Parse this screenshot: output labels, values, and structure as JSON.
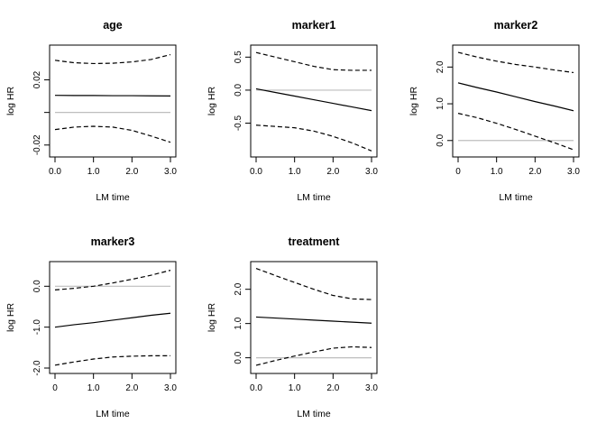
{
  "chart_data": [
    {
      "type": "line",
      "title": "age",
      "xlabel": "LM time",
      "ylabel": "log HR",
      "xlim": [
        0,
        3
      ],
      "ylim": [
        -0.024,
        0.038
      ],
      "xticks": [
        "0.0",
        "1.0",
        "2.0",
        "3.0"
      ],
      "xtick_values": [
        0,
        1,
        2,
        3
      ],
      "yticks": [
        "-0.02",
        "0.02"
      ],
      "ytick_values": [
        -0.02,
        0.02
      ],
      "yminor_ticks": [
        0.0
      ],
      "reference_line": 0,
      "x": [
        0,
        0.5,
        1.0,
        1.5,
        2.0,
        2.5,
        3.0
      ],
      "series": [
        {
          "role": "estimate",
          "style": "solid",
          "values": [
            0.0105,
            0.0104,
            0.0104,
            0.0103,
            0.0103,
            0.0102,
            0.0101
          ]
        },
        {
          "role": "upper",
          "style": "dashed",
          "values": [
            0.032,
            0.0305,
            0.03,
            0.0302,
            0.031,
            0.0325,
            0.0355
          ]
        },
        {
          "role": "lower",
          "style": "dashed",
          "values": [
            -0.0105,
            -0.009,
            -0.0085,
            -0.009,
            -0.011,
            -0.0145,
            -0.0183
          ]
        }
      ]
    },
    {
      "type": "line",
      "title": "marker1",
      "xlabel": "LM time",
      "ylabel": "log HR",
      "xlim": [
        0,
        3
      ],
      "ylim": [
        -0.93,
        0.6
      ],
      "xticks": [
        "0.0",
        "1.0",
        "2.0",
        "3.0"
      ],
      "xtick_values": [
        0,
        1,
        2,
        3
      ],
      "yticks": [
        "-0.5",
        "0.0",
        "0.5"
      ],
      "ytick_values": [
        -0.5,
        0.0,
        0.5
      ],
      "reference_line": 0,
      "x": [
        0,
        0.5,
        1.0,
        1.5,
        2.0,
        2.5,
        3.0
      ],
      "series": [
        {
          "role": "estimate",
          "style": "solid",
          "values": [
            0.02,
            -0.035,
            -0.09,
            -0.145,
            -0.2,
            -0.255,
            -0.31
          ]
        },
        {
          "role": "upper",
          "style": "dashed",
          "values": [
            0.57,
            0.5,
            0.43,
            0.36,
            0.31,
            0.3,
            0.3
          ]
        },
        {
          "role": "lower",
          "style": "dashed",
          "values": [
            -0.53,
            -0.55,
            -0.57,
            -0.62,
            -0.7,
            -0.8,
            -0.92
          ]
        }
      ]
    },
    {
      "type": "line",
      "title": "marker2",
      "xlabel": "LM time",
      "ylabel": "log HR",
      "xlim": [
        0,
        3
      ],
      "ylim": [
        -0.3,
        2.45
      ],
      "xticks": [
        "0",
        "1.0",
        "2.0",
        "3.0"
      ],
      "xtick_values": [
        0,
        1,
        2,
        3
      ],
      "yticks": [
        "0.0",
        "1.0",
        "2.0"
      ],
      "ytick_values": [
        0.0,
        1.0,
        2.0
      ],
      "reference_line": 0,
      "x": [
        0,
        0.5,
        1.0,
        1.5,
        2.0,
        2.5,
        3.0
      ],
      "series": [
        {
          "role": "estimate",
          "style": "solid",
          "values": [
            1.57,
            1.44,
            1.32,
            1.19,
            1.06,
            0.94,
            0.81
          ]
        },
        {
          "role": "upper",
          "style": "dashed",
          "values": [
            2.4,
            2.27,
            2.16,
            2.07,
            2.0,
            1.92,
            1.85
          ]
        },
        {
          "role": "lower",
          "style": "dashed",
          "values": [
            0.74,
            0.62,
            0.47,
            0.3,
            0.12,
            -0.06,
            -0.25
          ]
        }
      ]
    },
    {
      "type": "line",
      "title": "marker3",
      "xlabel": "LM time",
      "ylabel": "log HR",
      "xlim": [
        0,
        3
      ],
      "ylim": [
        -2.0,
        0.47
      ],
      "xticks": [
        "0",
        "1.0",
        "2.0",
        "3.0"
      ],
      "xtick_values": [
        0,
        1,
        2,
        3
      ],
      "yticks": [
        "-2.0",
        "-1.0",
        "0.0"
      ],
      "ytick_values": [
        -2.0,
        -1.0,
        0.0
      ],
      "reference_line": 0,
      "x": [
        0,
        0.5,
        1.0,
        1.5,
        2.0,
        2.5,
        3.0
      ],
      "series": [
        {
          "role": "estimate",
          "style": "solid",
          "values": [
            -1.0,
            -0.94,
            -0.89,
            -0.83,
            -0.77,
            -0.71,
            -0.66
          ]
        },
        {
          "role": "upper",
          "style": "dashed",
          "values": [
            -0.09,
            -0.05,
            0.0,
            0.08,
            0.17,
            0.27,
            0.39
          ]
        },
        {
          "role": "lower",
          "style": "dashed",
          "values": [
            -1.93,
            -1.85,
            -1.78,
            -1.73,
            -1.71,
            -1.7,
            -1.7
          ]
        }
      ]
    },
    {
      "type": "line",
      "title": "treatment",
      "xlabel": "LM time",
      "ylabel": "log HR",
      "xlim": [
        0,
        3
      ],
      "ylim": [
        -0.3,
        2.65
      ],
      "xticks": [
        "0.0",
        "1.0",
        "2.0",
        "3.0"
      ],
      "xtick_values": [
        0,
        1,
        2,
        3
      ],
      "yticks": [
        "0.0",
        "1.0",
        "2.0"
      ],
      "ytick_values": [
        0.0,
        1.0,
        2.0
      ],
      "reference_line": 0,
      "x": [
        0,
        0.5,
        1.0,
        1.5,
        2.0,
        2.5,
        3.0
      ],
      "series": [
        {
          "role": "estimate",
          "style": "solid",
          "values": [
            1.19,
            1.16,
            1.13,
            1.1,
            1.07,
            1.04,
            1.01
          ]
        },
        {
          "role": "upper",
          "style": "dashed",
          "values": [
            2.61,
            2.4,
            2.2,
            2.0,
            1.82,
            1.72,
            1.7
          ]
        },
        {
          "role": "lower",
          "style": "dashed",
          "values": [
            -0.22,
            -0.08,
            0.05,
            0.17,
            0.28,
            0.32,
            0.3
          ]
        }
      ]
    }
  ],
  "colors": {
    "estimate": "#000000",
    "bounds": "#000000",
    "reference": "#bebebe",
    "axis": "#000000",
    "background": "#ffffff"
  }
}
